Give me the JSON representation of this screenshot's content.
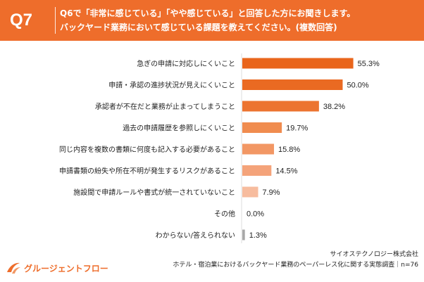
{
  "header": {
    "question_number": "Q7",
    "line1": "Q6で「非常に感じている」「やや感じている」と回答した方にお聞きします。",
    "line2": "バックヤード業務において感じている課題を教えてください。(複数回答)"
  },
  "chart_data": {
    "type": "bar",
    "orientation": "horizontal",
    "title": "バックヤード業務において感じている課題 (複数回答)",
    "xlim": [
      0,
      100
    ],
    "categories": [
      "急ぎの申請に対応しにくいこと",
      "申請・承認の進捗状況が見えにくいこと",
      "承認者が不在だと業務が止まってしまうこと",
      "過去の申請履歴を参照しにくいこと",
      "同じ内容を複数の書類に何度も記入する必要があること",
      "申請書類の紛失や所在不明が発生するリスクがあること",
      "施設間で申請ルールや書式が統一されていないこと",
      "その他",
      "わからない/答えられない"
    ],
    "values": [
      55.3,
      50.0,
      38.2,
      19.7,
      15.8,
      14.5,
      7.9,
      0.0,
      1.3
    ],
    "value_labels": [
      "55.3%",
      "50.0%",
      "38.2%",
      "19.7%",
      "15.8%",
      "14.5%",
      "7.9%",
      "0.0%",
      "1.3%"
    ],
    "bar_colors": [
      "#e9651c",
      "#ea6a22",
      "#ec7430",
      "#f08c4f",
      "#f29764",
      "#f4a37a",
      "#f7bc9e",
      "#cccccc",
      "#a8a8a8"
    ]
  },
  "footer": {
    "logo_text": "グルージェントフロー",
    "company": "サイオステクノロジー株式会社",
    "survey": "ホテル・宿泊業におけるバックヤード業務のペーパーレス化に関する実態調査｜n=76"
  },
  "colors": {
    "accent": "#ee6d2b"
  }
}
